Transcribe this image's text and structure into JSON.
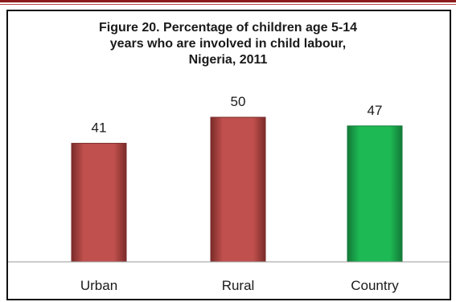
{
  "chart_data": {
    "type": "bar",
    "title_lines": [
      "Figure 20. Percentage of children age 5-14",
      "years who are involved in child labour,",
      "Nigeria, 2011"
    ],
    "categories": [
      "Urban",
      "Rural",
      "Country"
    ],
    "values": [
      41,
      50,
      47
    ],
    "data_labels": [
      "41",
      "50",
      "47"
    ],
    "bar_colors": [
      "#c0504d",
      "#c0504d",
      "#1db954"
    ],
    "bar_stroke_colors": [
      "#7a2b29",
      "#7a2b29",
      "#137a37"
    ],
    "ylim": [
      0,
      60
    ],
    "grid": false,
    "legend": "none",
    "xlabel": "",
    "ylabel": ""
  }
}
